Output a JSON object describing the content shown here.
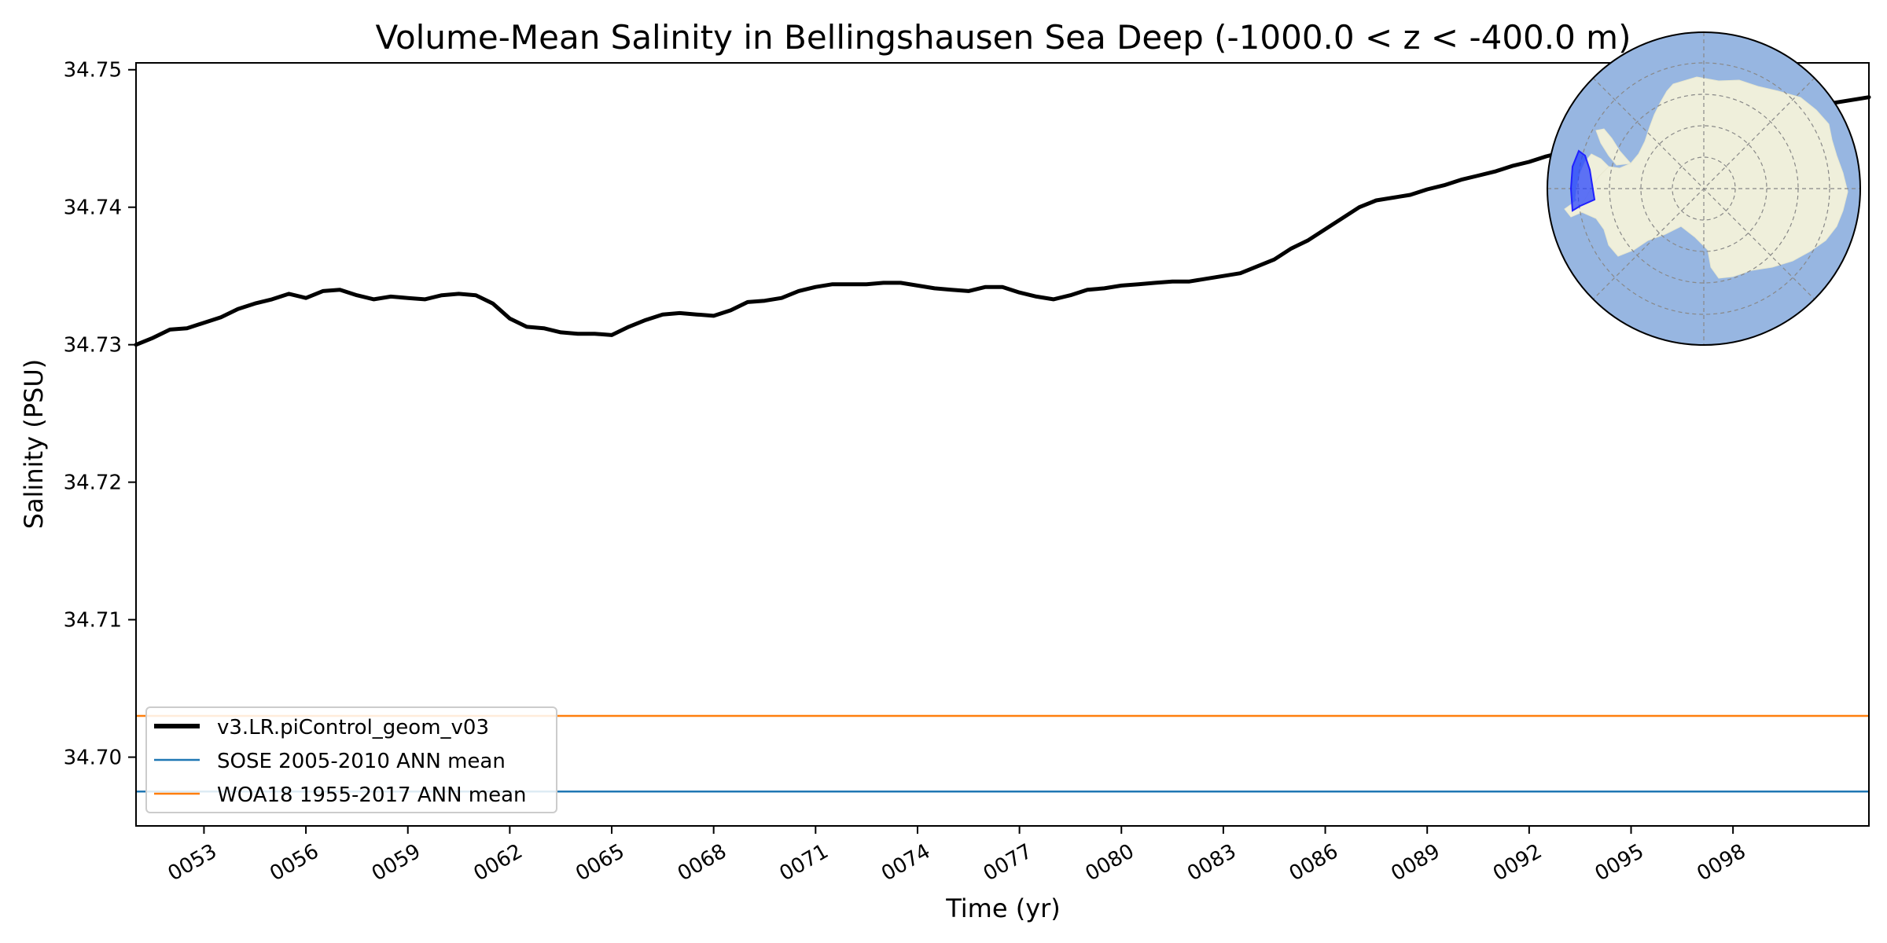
{
  "chart_data": {
    "type": "line",
    "title": "Volume-Mean Salinity in Bellingshausen Sea Deep (-1000.0 < z < -400.0 m)",
    "xlabel": "Time (yr)",
    "ylabel": "Salinity (PSU)",
    "xlim": [
      51,
      102
    ],
    "ylim": [
      34.695,
      34.7505
    ],
    "x_ticks": [
      53,
      56,
      59,
      62,
      65,
      68,
      71,
      74,
      77,
      80,
      83,
      86,
      89,
      92,
      95,
      98
    ],
    "x_tick_labels": [
      "0053",
      "0056",
      "0059",
      "0062",
      "0065",
      "0068",
      "0071",
      "0074",
      "0077",
      "0080",
      "0083",
      "0086",
      "0089",
      "0092",
      "0095",
      "0098"
    ],
    "y_ticks": [
      34.7,
      34.71,
      34.72,
      34.73,
      34.74,
      34.75
    ],
    "y_tick_labels": [
      "34.70",
      "34.71",
      "34.72",
      "34.73",
      "34.74",
      "34.75"
    ],
    "grid": false,
    "legend_position": "lower-left",
    "series": [
      {
        "name": "v3.LR.piControl_geom_v03",
        "color": "#000000",
        "style": "thick-line",
        "x": [
          51.0,
          51.5,
          52.0,
          52.5,
          53.0,
          53.5,
          54.0,
          54.5,
          55.0,
          55.5,
          56.0,
          56.5,
          57.0,
          57.5,
          58.0,
          58.5,
          59.0,
          59.5,
          60.0,
          60.5,
          61.0,
          61.5,
          62.0,
          62.5,
          63.0,
          63.5,
          64.0,
          64.5,
          65.0,
          65.5,
          66.0,
          66.5,
          67.0,
          67.5,
          68.0,
          68.5,
          69.0,
          69.5,
          70.0,
          70.5,
          71.0,
          71.5,
          72.0,
          72.5,
          73.0,
          73.5,
          74.0,
          74.5,
          75.0,
          75.5,
          76.0,
          76.5,
          77.0,
          77.5,
          78.0,
          78.5,
          79.0,
          79.5,
          80.0,
          80.5,
          81.0,
          81.5,
          82.0,
          82.5,
          83.0,
          83.5,
          84.0,
          84.5,
          85.0,
          85.5,
          86.0,
          86.5,
          87.0,
          87.5,
          88.0,
          88.5,
          89.0,
          89.5,
          90.0,
          90.5,
          91.0,
          91.5,
          92.0,
          92.5,
          93.0,
          93.5,
          94.0,
          94.5,
          95.0,
          95.5,
          96.0,
          96.5,
          97.0,
          97.5,
          98.0,
          98.5,
          99.0,
          99.5,
          100.0,
          100.5,
          101.0,
          101.5,
          102.0
        ],
        "values": [
          34.73,
          34.7305,
          34.7311,
          34.7312,
          34.7316,
          34.732,
          34.7326,
          34.733,
          34.7333,
          34.7337,
          34.7334,
          34.7339,
          34.734,
          34.7336,
          34.7333,
          34.7335,
          34.7334,
          34.7333,
          34.7336,
          34.7337,
          34.7336,
          34.733,
          34.7319,
          34.7313,
          34.7312,
          34.7309,
          34.7308,
          34.7308,
          34.7307,
          34.7313,
          34.7318,
          34.7322,
          34.7323,
          34.7322,
          34.7321,
          34.7325,
          34.7331,
          34.7332,
          34.7334,
          34.7339,
          34.7342,
          34.7344,
          34.7344,
          34.7344,
          34.7345,
          34.7345,
          34.7343,
          34.7341,
          34.734,
          34.7339,
          34.7342,
          34.7342,
          34.7338,
          34.7335,
          34.7333,
          34.7336,
          34.734,
          34.7341,
          34.7343,
          34.7344,
          34.7345,
          34.7346,
          34.7346,
          34.7348,
          34.735,
          34.7352,
          34.7357,
          34.7362,
          34.737,
          34.7376,
          34.7384,
          34.7392,
          34.74,
          34.7405,
          34.7407,
          34.7409,
          34.7413,
          34.7416,
          34.742,
          34.7423,
          34.7426,
          34.743,
          34.7433,
          34.7437,
          34.744,
          34.7444,
          34.7446,
          34.7449,
          34.7451,
          34.7453,
          34.7455,
          34.7458,
          34.746,
          34.7462,
          34.7464,
          34.7467,
          34.7469,
          34.747,
          34.7472,
          34.7474,
          34.7476,
          34.7478,
          34.748
        ]
      },
      {
        "name": "SOSE 2005-2010 ANN mean",
        "color": "#1f77b4",
        "style": "horizontal-line",
        "value": 34.6975
      },
      {
        "name": "WOA18 1955-2017 ANN mean",
        "color": "#ff7f0e",
        "style": "horizontal-line",
        "value": 34.703
      }
    ],
    "inset_map": {
      "description": "south polar stereographic map",
      "colors": {
        "ocean": "#97b6e1",
        "land": "#efefdb",
        "region": "#0000ff",
        "graticule": "#888888"
      }
    }
  }
}
